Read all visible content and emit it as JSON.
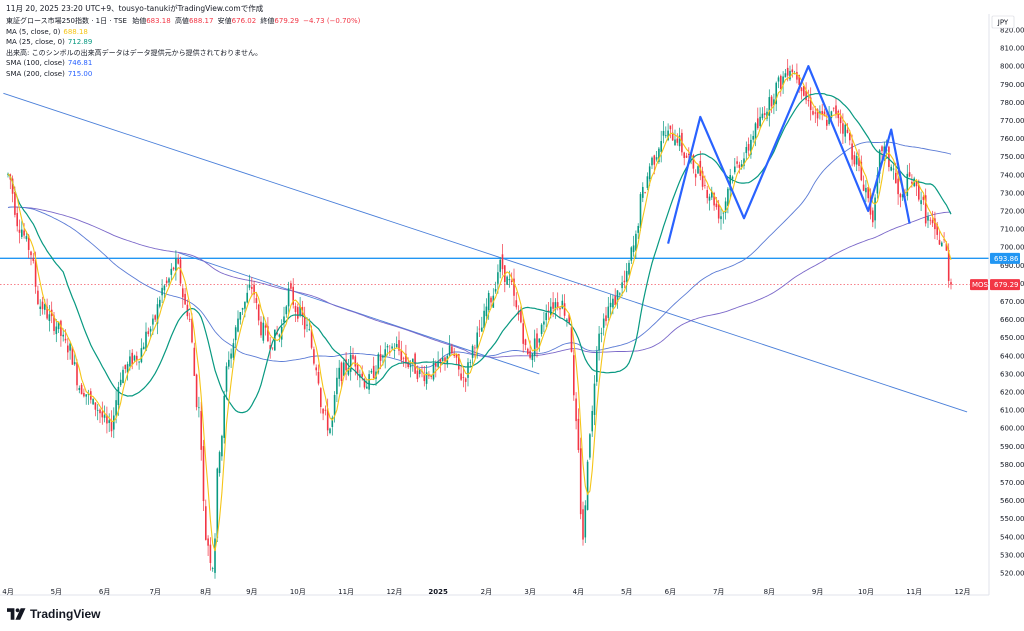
{
  "caption": "11月 20, 2025 23:20 UTC+9、tousyo-tanukiがTradingView.comで作成",
  "legend": {
    "symbol_line": "東証グロース市場250指数 · 1日 · TSE",
    "ohlc": [
      {
        "label": "始値",
        "value": "683.18"
      },
      {
        "label": "高値",
        "value": "688.17"
      },
      {
        "label": "安値",
        "value": "676.02"
      },
      {
        "label": "終値",
        "value": "679.29"
      }
    ],
    "change": "−4.73 (−0.70%)",
    "indicators": [
      {
        "name": "MA (5, close, 0)",
        "value": "688.18",
        "color": "#f5c518"
      },
      {
        "name": "MA (25, close, 0)",
        "value": "712.89",
        "color": "#089981"
      },
      {
        "name": "出来高: このシンボルの出来高データはデータ提供元から提供されておりません。",
        "value": "",
        "color": "#131722"
      },
      {
        "name": "SMA (100, close)",
        "value": "746.81",
        "color": "#2962ff"
      },
      {
        "name": "SMA (200, close)",
        "value": "715.00",
        "color": "#2962ff"
      }
    ]
  },
  "currency": "JPY",
  "brand": "TradingView",
  "colors": {
    "up": "#089981",
    "down": "#f23645",
    "ma5": "#f5c518",
    "ma25": "#089981",
    "sma100": "#5b7bd5",
    "sma200": "#7b68c9",
    "trend": "#4a7fd9",
    "hline": "#2196f3",
    "pattern": "#2962ff"
  },
  "chart_data": {
    "type": "candlestick",
    "y_axis": {
      "min": 515,
      "max": 826,
      "ticks": [
        520,
        530,
        540,
        550,
        560,
        570,
        580,
        590,
        600,
        610,
        620,
        630,
        640,
        650,
        660,
        670,
        680,
        690,
        700,
        710,
        720,
        730,
        740,
        750,
        760,
        770,
        780,
        790,
        800,
        810,
        820
      ]
    },
    "x_axis": {
      "ticks": [
        {
          "label": "4月",
          "day": 0
        },
        {
          "label": "5月",
          "day": 21
        },
        {
          "label": "6月",
          "day": 42
        },
        {
          "label": "7月",
          "day": 64
        },
        {
          "label": "8月",
          "day": 86
        },
        {
          "label": "9月",
          "day": 106
        },
        {
          "label": "10月",
          "day": 126
        },
        {
          "label": "11月",
          "day": 147
        },
        {
          "label": "12月",
          "day": 168
        },
        {
          "label": "2025",
          "day": 187
        },
        {
          "label": "2月",
          "day": 208
        },
        {
          "label": "3月",
          "day": 227
        },
        {
          "label": "4月",
          "day": 248
        },
        {
          "label": "5月",
          "day": 269
        },
        {
          "label": "6月",
          "day": 288
        },
        {
          "label": "7月",
          "day": 309
        },
        {
          "label": "8月",
          "day": 331
        },
        {
          "label": "9月",
          "day": 352
        },
        {
          "label": "10月",
          "day": 373
        },
        {
          "label": "11月",
          "day": 394
        },
        {
          "label": "12月",
          "day": 415
        }
      ],
      "last_day": 410
    },
    "price_anchors": [
      [
        0,
        740
      ],
      [
        5,
        712
      ],
      [
        9,
        700
      ],
      [
        14,
        668
      ],
      [
        20,
        658
      ],
      [
        26,
        645
      ],
      [
        32,
        622
      ],
      [
        38,
        612
      ],
      [
        44,
        600
      ],
      [
        50,
        632
      ],
      [
        56,
        640
      ],
      [
        62,
        655
      ],
      [
        68,
        678
      ],
      [
        73,
        690
      ],
      [
        78,
        665
      ],
      [
        83,
        610
      ],
      [
        86,
        540
      ],
      [
        89,
        525
      ],
      [
        92,
        590
      ],
      [
        96,
        640
      ],
      [
        102,
        668
      ],
      [
        106,
        678
      ],
      [
        110,
        655
      ],
      [
        114,
        648
      ],
      [
        118,
        652
      ],
      [
        122,
        675
      ],
      [
        126,
        665
      ],
      [
        130,
        655
      ],
      [
        134,
        635
      ],
      [
        137,
        608
      ],
      [
        140,
        600
      ],
      [
        144,
        630
      ],
      [
        150,
        638
      ],
      [
        156,
        625
      ],
      [
        162,
        638
      ],
      [
        168,
        645
      ],
      [
        174,
        636
      ],
      [
        180,
        630
      ],
      [
        186,
        632
      ],
      [
        192,
        642
      ],
      [
        198,
        628
      ],
      [
        204,
        650
      ],
      [
        210,
        672
      ],
      [
        214,
        690
      ],
      [
        218,
        680
      ],
      [
        222,
        662
      ],
      [
        226,
        640
      ],
      [
        230,
        648
      ],
      [
        235,
        668
      ],
      [
        240,
        670
      ],
      [
        244,
        660
      ],
      [
        247,
        600
      ],
      [
        250,
        540
      ],
      [
        253,
        600
      ],
      [
        257,
        655
      ],
      [
        262,
        668
      ],
      [
        268,
        680
      ],
      [
        272,
        700
      ],
      [
        276,
        730
      ],
      [
        280,
        748
      ],
      [
        285,
        762
      ],
      [
        290,
        762
      ],
      [
        295,
        750
      ],
      [
        300,
        742
      ],
      [
        305,
        730
      ],
      [
        310,
        718
      ],
      [
        315,
        742
      ],
      [
        320,
        750
      ],
      [
        325,
        765
      ],
      [
        330,
        778
      ],
      [
        335,
        790
      ],
      [
        340,
        800
      ],
      [
        343,
        795
      ],
      [
        348,
        780
      ],
      [
        352,
        772
      ],
      [
        356,
        770
      ],
      [
        360,
        775
      ],
      [
        364,
        765
      ],
      [
        368,
        750
      ],
      [
        372,
        735
      ],
      [
        376,
        718
      ],
      [
        380,
        755
      ],
      [
        384,
        745
      ],
      [
        388,
        725
      ],
      [
        392,
        738
      ],
      [
        396,
        730
      ],
      [
        400,
        715
      ],
      [
        404,
        705
      ],
      [
        407,
        702
      ],
      [
        410,
        679
      ]
    ],
    "series": [
      {
        "name": "MA (5, close, 0)",
        "last": 688.18
      },
      {
        "name": "MA (25, close, 0)",
        "last": 712.89
      },
      {
        "name": "SMA (100, close)",
        "last": 746.81
      },
      {
        "name": "SMA (200, close)",
        "last": 715.0
      }
    ],
    "trendlines": [
      {
        "from": [
          -2,
          785
        ],
        "to": [
          417,
          609
        ]
      },
      {
        "from": [
          74,
          697
        ],
        "to": [
          231,
          630
        ]
      }
    ],
    "horizontal_line": {
      "value": 693.86,
      "label": "693.86"
    },
    "last_price": {
      "value": 679.29,
      "label": "679.29",
      "tag": "MOS"
    },
    "pattern_lines": [
      [
        [
          287,
          702
        ],
        [
          301,
          772
        ],
        [
          320,
          716
        ],
        [
          348,
          800
        ],
        [
          374,
          720
        ],
        [
          384,
          765
        ],
        [
          392,
          713
        ]
      ]
    ]
  }
}
